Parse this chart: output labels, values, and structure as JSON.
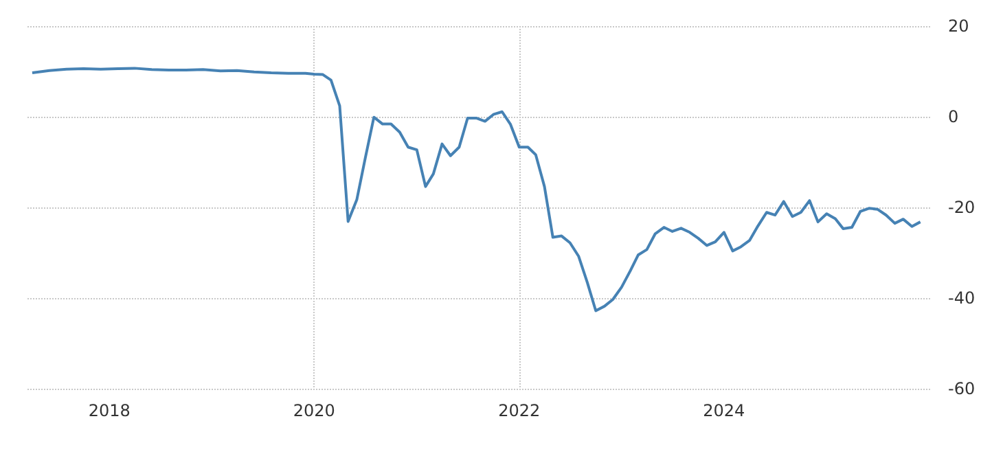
{
  "chart_data": {
    "type": "line",
    "x": [
      "2017-04",
      "2017-06",
      "2017-08",
      "2017-10",
      "2017-12",
      "2018-02",
      "2018-04",
      "2018-06",
      "2018-08",
      "2018-10",
      "2018-12",
      "2019-02",
      "2019-04",
      "2019-06",
      "2019-08",
      "2019-10",
      "2019-12",
      "2020-01",
      "2020-02",
      "2020-03",
      "2020-04",
      "2020-05",
      "2020-06",
      "2020-07",
      "2020-08",
      "2020-09",
      "2020-10",
      "2020-11",
      "2020-12",
      "2021-01",
      "2021-02",
      "2021-03",
      "2021-04",
      "2021-05",
      "2021-06",
      "2021-07",
      "2021-08",
      "2021-09",
      "2021-10",
      "2021-11",
      "2021-12",
      "2022-01",
      "2022-02",
      "2022-03",
      "2022-04",
      "2022-05",
      "2022-06",
      "2022-07",
      "2022-08",
      "2022-09",
      "2022-10",
      "2022-11",
      "2022-12",
      "2023-01",
      "2023-02",
      "2023-03",
      "2023-04",
      "2023-05",
      "2023-06",
      "2023-07",
      "2023-08",
      "2023-09",
      "2023-10",
      "2023-11",
      "2023-12",
      "2024-01",
      "2024-02",
      "2024-03",
      "2024-04",
      "2024-05",
      "2024-06",
      "2024-07",
      "2024-08",
      "2024-09",
      "2024-10",
      "2024-11",
      "2024-12",
      "2025-01",
      "2025-02",
      "2025-03",
      "2025-04",
      "2025-05",
      "2025-06",
      "2025-07",
      "2025-08",
      "2025-09",
      "2025-10",
      "2025-11",
      "2025-12"
    ],
    "series": [
      {
        "color": "#4682b4",
        "values": [
          9.7,
          10.2,
          10.5,
          10.6,
          10.5,
          10.6,
          10.7,
          10.4,
          10.3,
          10.3,
          10.4,
          10.1,
          10.2,
          9.9,
          9.7,
          9.6,
          9.6,
          9.4,
          9.3,
          8.1,
          2.4,
          -23.1,
          -18.3,
          -9.2,
          -0.1,
          -1.6,
          -1.6,
          -3.4,
          -6.7,
          -7.3,
          -15.4,
          -12.6,
          -6,
          -8.6,
          -6.7,
          -0.3,
          -0.3,
          -1,
          0.5,
          1.1,
          -1.7,
          -6.7,
          -6.7,
          -8.4,
          -15.4,
          -26.6,
          -26.3,
          -27.8,
          -30.8,
          -36.6,
          -42.8,
          -41.8,
          -40.3,
          -37.6,
          -34,
          -30.5,
          -29.3,
          -25.8,
          -24.4,
          -25.3,
          -24.6,
          -25.5,
          -26.8,
          -28.4,
          -27.6,
          -25.5,
          -29.6,
          -28.7,
          -27.3,
          -24.1,
          -21.1,
          -21.7,
          -18.7,
          -22,
          -21.1,
          -18.5,
          -23.2,
          -21.4,
          -22.5,
          -24.7,
          -24.4,
          -20.9,
          -20.2,
          -20.4,
          -21.7,
          -23.5,
          -22.6,
          -24.2,
          -23.2
        ]
      }
    ],
    "xlim": [
      "2017-03-15",
      "2026-01-10"
    ],
    "xticks": [
      "2018",
      "2020",
      "2022",
      "2024"
    ],
    "ylim": [
      -60,
      20
    ],
    "yticks": [
      -60,
      -40,
      -20,
      0,
      20
    ],
    "grid": true,
    "marker": "none",
    "line_style": "solid"
  }
}
